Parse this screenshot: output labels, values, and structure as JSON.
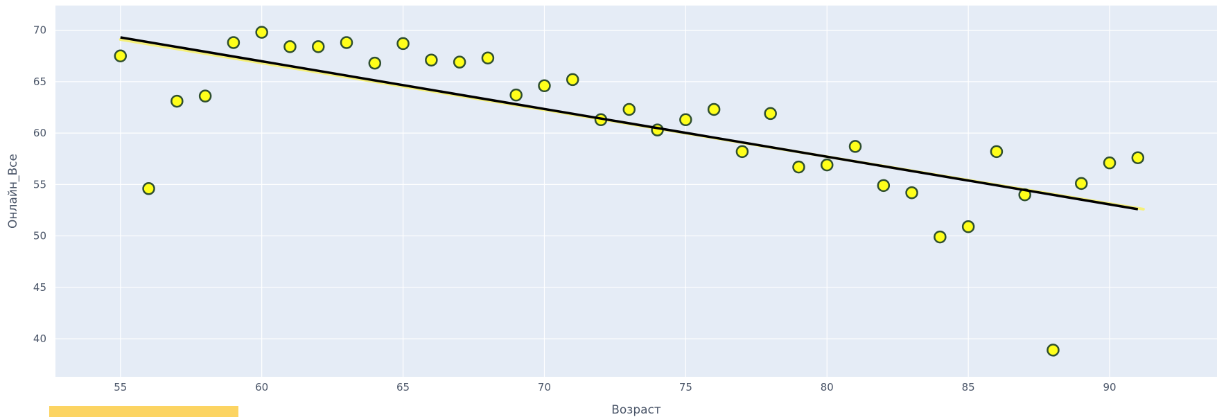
{
  "chart_data": {
    "type": "scatter",
    "title": "",
    "xlabel": "Возраст",
    "ylabel": "Онлайн_Все",
    "xlim": [
      52.7,
      93.8
    ],
    "ylim": [
      36.3,
      72.4
    ],
    "xticks": [
      55,
      60,
      65,
      70,
      75,
      80,
      85,
      90
    ],
    "yticks": [
      40,
      45,
      50,
      55,
      60,
      65,
      70
    ],
    "grid": true,
    "legend": "none",
    "colors": {
      "plot_bg": "#e5ecf6",
      "grid": "#ffffff",
      "marker_fill": "#ffff1a",
      "marker_edge": "#2f4f2f",
      "trend_line": "#000000",
      "trend_shadow": "#f5f07a",
      "highlight_bar": "#fcd462"
    },
    "series": [
      {
        "x": [
          55,
          56,
          57,
          58,
          59,
          60,
          61,
          62,
          63,
          64,
          65,
          66,
          67,
          68,
          69,
          70,
          71,
          72,
          73,
          74,
          75,
          76,
          77,
          78,
          79,
          80,
          81,
          82,
          83,
          84,
          85,
          86,
          87,
          88,
          89,
          90,
          91
        ],
        "y": [
          67.5,
          54.6,
          63.1,
          63.6,
          68.8,
          69.8,
          68.4,
          68.4,
          68.8,
          66.8,
          68.7,
          67.1,
          66.9,
          67.3,
          63.7,
          64.6,
          65.2,
          61.3,
          62.3,
          60.3,
          61.3,
          62.3,
          58.2,
          61.9,
          56.7,
          56.9,
          58.7,
          54.9,
          54.2,
          49.9,
          50.9,
          58.2,
          54.0,
          38.9,
          55.1,
          57.1,
          57.6
        ]
      }
    ],
    "trendline": {
      "x": [
        55,
        91
      ],
      "y": [
        69.3,
        52.6
      ]
    }
  },
  "highlight": {}
}
